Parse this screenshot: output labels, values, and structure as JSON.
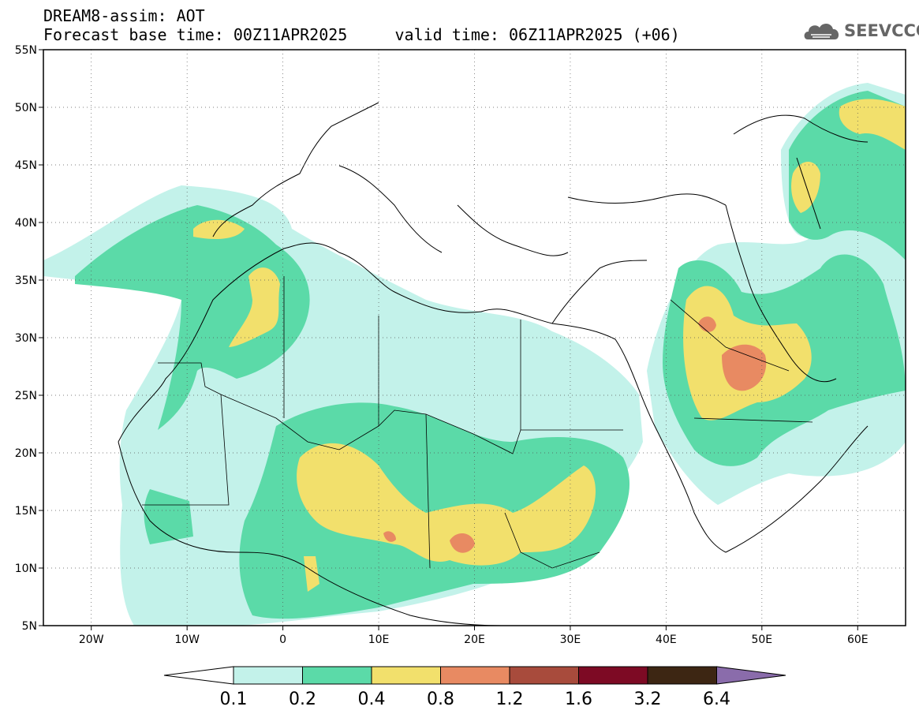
{
  "title": {
    "line1": "DREAM8-assim: AOT",
    "line2": "Forecast base time: 00Z11APR2025     valid time: 06Z11APR2025 (+06)"
  },
  "logo": {
    "text": "SEEVCCC",
    "icon": "cloud-icon",
    "color": "#666666"
  },
  "map": {
    "lon_range": [
      -25,
      65
    ],
    "lat_range": [
      5,
      55
    ],
    "lat_labels": [
      "5N",
      "10N",
      "15N",
      "20N",
      "25N",
      "30N",
      "35N",
      "40N",
      "45N",
      "50N",
      "55N"
    ],
    "lon_labels": [
      "20W",
      "10W",
      "0",
      "10E",
      "20E",
      "30E",
      "40E",
      "50E",
      "60E"
    ],
    "grid": true
  },
  "colorbar": {
    "levels": [
      "0.1",
      "0.2",
      "0.4",
      "0.8",
      "1.2",
      "1.6",
      "3.2",
      "6.4"
    ],
    "colors": [
      "#c3f2ea",
      "#5bdaa8",
      "#f2e06c",
      "#e88a62",
      "#a84b3c",
      "#7d0a24",
      "#3d2613",
      "#8a6cab"
    ],
    "below_color": "#ffffff"
  }
}
